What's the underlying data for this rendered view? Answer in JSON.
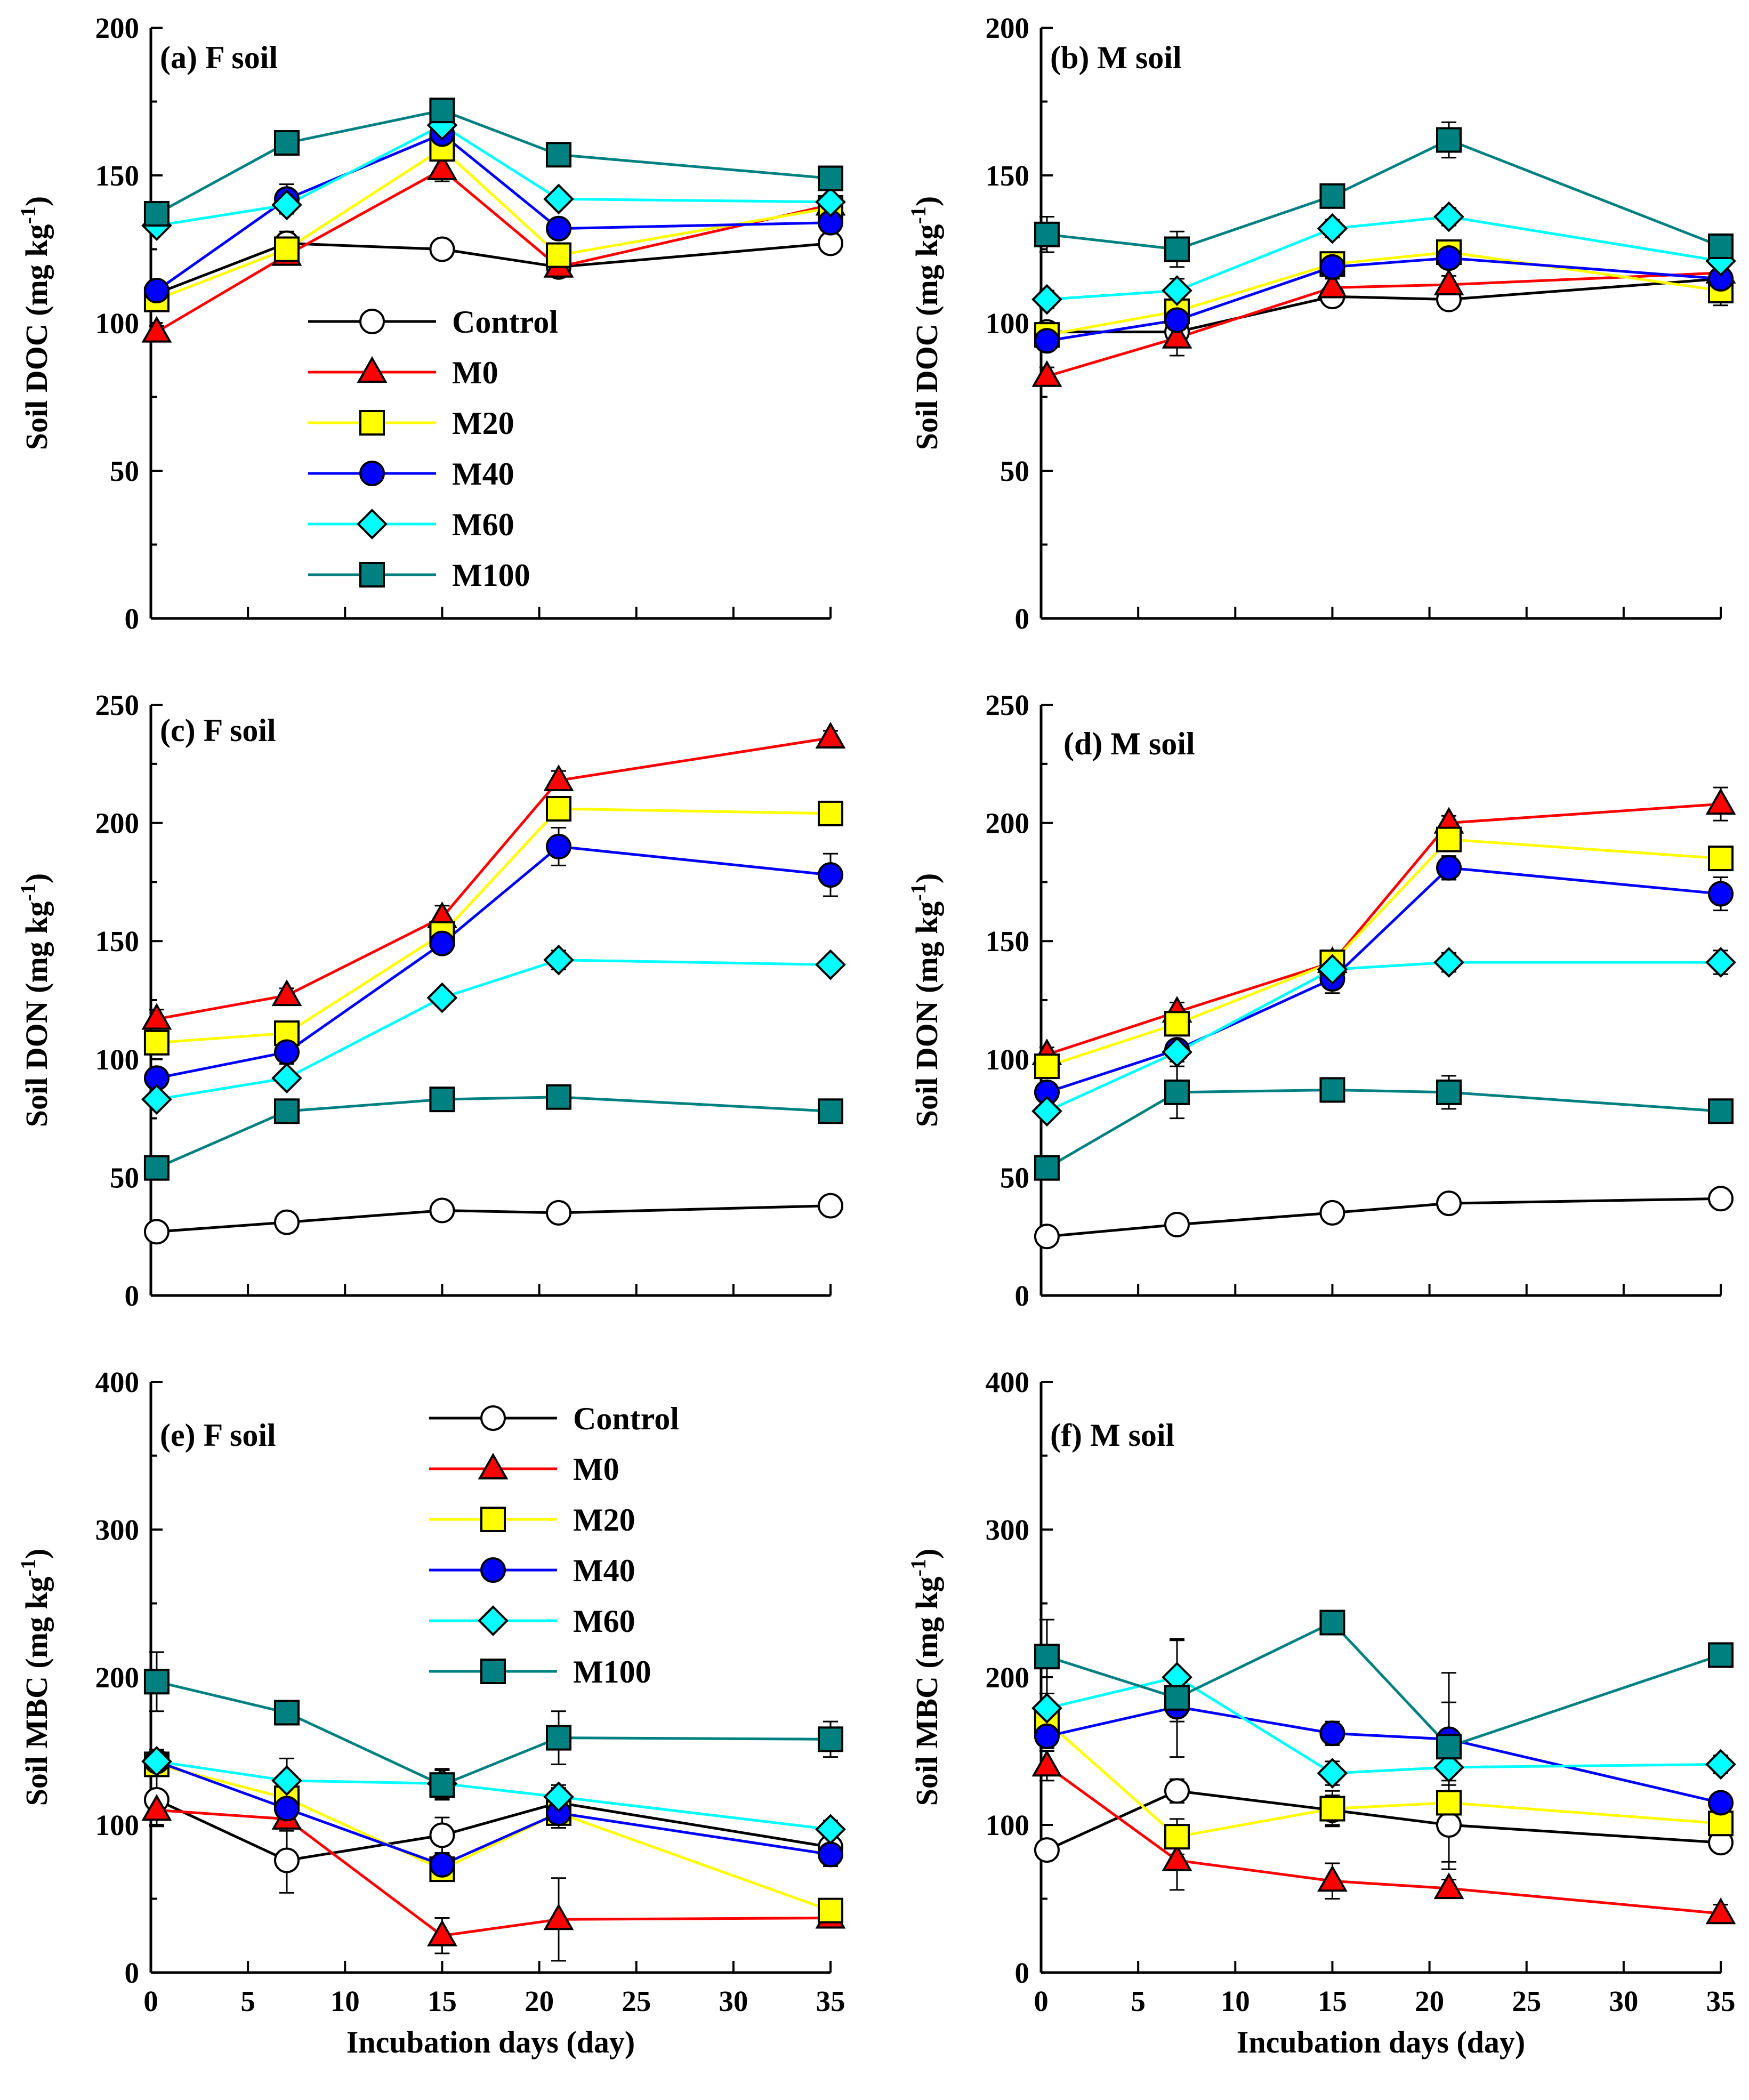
{
  "chart_data": [
    {
      "type": "line",
      "panel": "a",
      "title": "(a) F soil",
      "xlabel": "",
      "ylabel": "Soil DOC (mg kg-1)",
      "ylabel_main": "Soil DOC (mg kg",
      "ylabel_exp": "-1",
      "ylabel_close": ")",
      "xlim": [
        0,
        35
      ],
      "ylim": [
        0,
        200
      ],
      "xticks": [
        0,
        5,
        10,
        15,
        20,
        25,
        30,
        35
      ],
      "yticks": [
        0,
        50,
        100,
        150,
        200
      ],
      "show_x_ticklabels": false,
      "legend": true,
      "x": [
        0.3,
        7,
        15,
        21,
        35
      ],
      "series": [
        {
          "name": "Control",
          "values": [
            110,
            127,
            125,
            119,
            127
          ],
          "errors": [
            3,
            4,
            3,
            3,
            3
          ]
        },
        {
          "name": "M0",
          "values": [
            97,
            123,
            152,
            119,
            140
          ],
          "errors": [
            2,
            3,
            4,
            3,
            3
          ]
        },
        {
          "name": "M20",
          "values": [
            108,
            125,
            159,
            123,
            139
          ],
          "errors": [
            2,
            3,
            4,
            3,
            2
          ]
        },
        {
          "name": "M40",
          "values": [
            111,
            142,
            164,
            132,
            134
          ],
          "errors": [
            2,
            5,
            3,
            3,
            3
          ]
        },
        {
          "name": "M60",
          "values": [
            133,
            140,
            167,
            142,
            141
          ],
          "errors": [
            2,
            3,
            3,
            2,
            2
          ]
        },
        {
          "name": "M100",
          "values": [
            137,
            161,
            172,
            157,
            149
          ],
          "errors": [
            2,
            2,
            2,
            2,
            2
          ]
        }
      ]
    },
    {
      "type": "line",
      "panel": "b",
      "title": "(b) M soil",
      "xlabel": "",
      "ylabel": "Soil DOC (mg kg-1)",
      "ylabel_main": "Soil DOC (mg kg",
      "ylabel_exp": "-1",
      "ylabel_close": ")",
      "xlim": [
        0,
        35
      ],
      "ylim": [
        0,
        200
      ],
      "xticks": [
        0,
        5,
        10,
        15,
        20,
        25,
        30,
        35
      ],
      "yticks": [
        0,
        50,
        100,
        150,
        200
      ],
      "show_x_ticklabels": false,
      "legend": false,
      "x": [
        0.3,
        7,
        15,
        21,
        35
      ],
      "series": [
        {
          "name": "Control",
          "values": [
            97,
            97,
            109,
            108,
            115
          ],
          "errors": [
            3,
            4,
            2,
            3,
            3
          ]
        },
        {
          "name": "M0",
          "values": [
            82,
            95,
            112,
            113,
            117
          ],
          "errors": [
            3,
            6,
            3,
            3,
            3
          ]
        },
        {
          "name": "M20",
          "values": [
            96,
            104,
            120,
            124,
            111
          ],
          "errors": [
            3,
            4,
            3,
            3,
            5
          ]
        },
        {
          "name": "M40",
          "values": [
            94,
            101,
            119,
            122,
            115
          ],
          "errors": [
            3,
            4,
            3,
            3,
            3
          ]
        },
        {
          "name": "M60",
          "values": [
            108,
            111,
            132,
            136,
            121
          ],
          "errors": [
            3,
            4,
            3,
            3,
            3
          ]
        },
        {
          "name": "M100",
          "values": [
            130,
            125,
            143,
            162,
            126
          ],
          "errors": [
            6,
            6,
            3,
            6,
            3
          ]
        }
      ]
    },
    {
      "type": "line",
      "panel": "c",
      "title": "(c) F soil",
      "xlabel": "",
      "ylabel": "Soil DON (mg kg-1)",
      "ylabel_main": "Soil DON (mg kg",
      "ylabel_exp": "-1",
      "ylabel_close": ")",
      "xlim": [
        0,
        35
      ],
      "ylim": [
        0,
        250
      ],
      "xticks": [
        0,
        5,
        10,
        15,
        20,
        25,
        30,
        35
      ],
      "yticks": [
        0,
        50,
        100,
        150,
        200,
        250
      ],
      "show_x_ticklabels": false,
      "legend": false,
      "x": [
        0.3,
        7,
        15,
        21,
        35
      ],
      "series": [
        {
          "name": "Control",
          "values": [
            27,
            31,
            36,
            35,
            38
          ],
          "errors": [
            3,
            3,
            4,
            3,
            3
          ]
        },
        {
          "name": "M0",
          "values": [
            117,
            127,
            160,
            218,
            236
          ],
          "errors": [
            4,
            3,
            5,
            4,
            3
          ]
        },
        {
          "name": "M20",
          "values": [
            107,
            111,
            153,
            206,
            204
          ],
          "errors": [
            5,
            4,
            5,
            5,
            3
          ]
        },
        {
          "name": "M40",
          "values": [
            92,
            103,
            149,
            190,
            178
          ],
          "errors": [
            4,
            5,
            4,
            8,
            9
          ]
        },
        {
          "name": "M60",
          "values": [
            83,
            92,
            126,
            142,
            140
          ],
          "errors": [
            3,
            3,
            3,
            4,
            3
          ]
        },
        {
          "name": "M100",
          "values": [
            54,
            78,
            83,
            84,
            78
          ],
          "errors": [
            3,
            3,
            3,
            3,
            3
          ]
        }
      ]
    },
    {
      "type": "line",
      "panel": "d",
      "title": "(d) M soil",
      "xlabel": "",
      "ylabel": "Soil DON (mg kg-1)",
      "ylabel_main": "Soil DON (mg kg",
      "ylabel_exp": "-1",
      "ylabel_close": ")",
      "xlim": [
        0,
        35
      ],
      "ylim": [
        0,
        250
      ],
      "xticks": [
        0,
        5,
        10,
        15,
        20,
        25,
        30,
        35
      ],
      "yticks": [
        0,
        50,
        100,
        150,
        200,
        250
      ],
      "show_x_ticklabels": false,
      "legend": false,
      "x": [
        0.3,
        7,
        15,
        21,
        35
      ],
      "series": [
        {
          "name": "Control",
          "values": [
            25,
            30,
            35,
            39,
            41
          ],
          "errors": [
            2,
            3,
            3,
            3,
            3
          ]
        },
        {
          "name": "M0",
          "values": [
            102,
            120,
            141,
            200,
            208
          ],
          "errors": [
            3,
            4,
            4,
            3,
            7
          ]
        },
        {
          "name": "M20",
          "values": [
            97,
            115,
            141,
            193,
            185
          ],
          "errors": [
            3,
            4,
            4,
            4,
            4
          ]
        },
        {
          "name": "M40",
          "values": [
            86,
            104,
            134,
            181,
            170
          ],
          "errors": [
            3,
            4,
            6,
            5,
            7
          ]
        },
        {
          "name": "M60",
          "values": [
            78,
            103,
            138,
            141,
            141
          ],
          "errors": [
            3,
            4,
            4,
            4,
            5
          ]
        },
        {
          "name": "M100",
          "values": [
            54,
            86,
            87,
            86,
            78
          ],
          "errors": [
            3,
            11,
            3,
            7,
            3
          ]
        }
      ]
    },
    {
      "type": "line",
      "panel": "e",
      "title": "(e) F soil",
      "xlabel": "Incubation days (day)",
      "ylabel": "Soil MBC (mg kg-1)",
      "ylabel_main": "Soil MBC (mg kg",
      "ylabel_exp": "-1",
      "ylabel_close": ")",
      "xlim": [
        0,
        35
      ],
      "ylim": [
        0,
        400
      ],
      "xticks": [
        0,
        5,
        10,
        15,
        20,
        25,
        30,
        35
      ],
      "yticks": [
        0,
        100,
        200,
        300,
        400
      ],
      "show_x_ticklabels": true,
      "legend": true,
      "x": [
        0.3,
        7,
        15,
        21,
        35
      ],
      "series": [
        {
          "name": "Control",
          "values": [
            117,
            76,
            93,
            115,
            85
          ],
          "errors": [
            18,
            22,
            12,
            10,
            5
          ]
        },
        {
          "name": "M0",
          "values": [
            110,
            104,
            25,
            36,
            37
          ],
          "errors": [
            10,
            8,
            12,
            28,
            5
          ]
        },
        {
          "name": "M20",
          "values": [
            141,
            118,
            70,
            108,
            42
          ],
          "errors": [
            8,
            8,
            8,
            10,
            8
          ]
        },
        {
          "name": "M40",
          "values": [
            143,
            111,
            73,
            108,
            80
          ],
          "errors": [
            8,
            8,
            8,
            10,
            8
          ]
        },
        {
          "name": "M60",
          "values": [
            143,
            130,
            128,
            119,
            97
          ],
          "errors": [
            8,
            15,
            10,
            8,
            6
          ]
        },
        {
          "name": "M100",
          "values": [
            197,
            176,
            127,
            159,
            158
          ],
          "errors": [
            20,
            8,
            10,
            18,
            12
          ]
        }
      ]
    },
    {
      "type": "line",
      "panel": "f",
      "title": "(f) M soil",
      "xlabel": "Incubation days (day)",
      "ylabel": "Soil MBC (mg kg-1)",
      "ylabel_main": "Soil MBC (mg kg",
      "ylabel_exp": "-1",
      "ylabel_close": ")",
      "xlim": [
        0,
        35
      ],
      "ylim": [
        0,
        400
      ],
      "xticks": [
        0,
        5,
        10,
        15,
        20,
        25,
        30,
        35
      ],
      "yticks": [
        0,
        100,
        200,
        300,
        400
      ],
      "show_x_ticklabels": true,
      "legend": false,
      "x": [
        0.3,
        7,
        15,
        21,
        35
      ],
      "series": [
        {
          "name": "Control",
          "values": [
            83,
            123,
            110,
            100,
            88
          ],
          "errors": [
            5,
            8,
            10,
            30,
            5
          ]
        },
        {
          "name": "M0",
          "values": [
            140,
            76,
            62,
            57,
            40
          ],
          "errors": [
            10,
            20,
            12,
            6,
            6
          ]
        },
        {
          "name": "M20",
          "values": [
            170,
            92,
            111,
            115,
            101
          ],
          "errors": [
            8,
            12,
            12,
            40,
            6
          ]
        },
        {
          "name": "M40",
          "values": [
            160,
            180,
            162,
            158,
            115
          ],
          "errors": [
            8,
            10,
            8,
            45,
            6
          ]
        },
        {
          "name": "M60",
          "values": [
            179,
            200,
            135,
            139,
            141
          ],
          "errors": [
            10,
            25,
            8,
            12,
            6
          ]
        },
        {
          "name": "M100",
          "values": [
            214,
            186,
            237,
            153,
            215
          ],
          "errors": [
            25,
            40,
            6,
            30,
            6
          ]
        }
      ]
    }
  ],
  "series_styles": {
    "Control": {
      "marker": "circle",
      "fill": "#ffffff",
      "line": "#000000"
    },
    "M0": {
      "marker": "triangle",
      "fill": "#ff0000",
      "line": "#ff0000"
    },
    "M20": {
      "marker": "square",
      "fill": "#ffff00",
      "line": "#ffff00"
    },
    "M40": {
      "marker": "circle",
      "fill": "#0000ff",
      "line": "#0000ff"
    },
    "M60": {
      "marker": "diamond",
      "fill": "#00ffff",
      "line": "#00ffff"
    },
    "M100": {
      "marker": "square",
      "fill": "#008080",
      "line": "#008080"
    }
  }
}
